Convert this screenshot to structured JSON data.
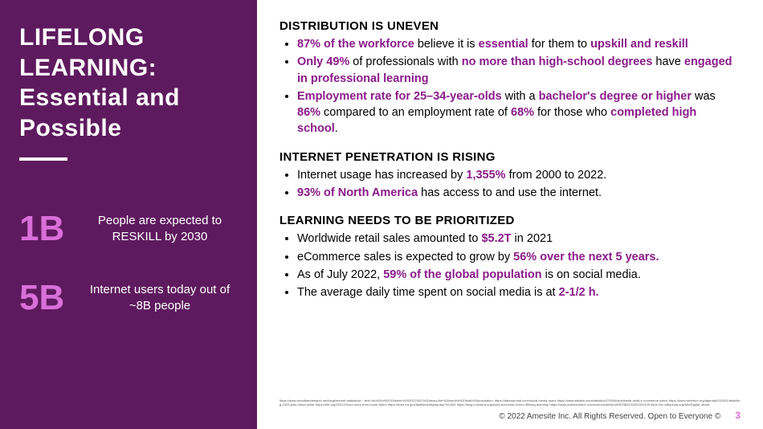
{
  "colors": {
    "sidebar_bg": "#5e1a5e",
    "accent_pink": "#d96fd9",
    "accent_purple": "#8a1b8a",
    "white": "#ffffff",
    "black": "#000000"
  },
  "sidebar": {
    "title_line1": "LIFELONG",
    "title_line2": "LEARNING:",
    "title_line3": "Essential and",
    "title_line4": "Possible",
    "stats": [
      {
        "num": "1B",
        "txt": "People are expected to RESKILL by 2030"
      },
      {
        "num": "5B",
        "txt": "Internet users today out of ~8B people"
      }
    ]
  },
  "sections": [
    {
      "head": "DISTRIBUTION IS UNEVEN",
      "bullets": [
        "<span class=\"accent\">87% of the workforce</span> believe it is <span class=\"accent\">essential</span> for them to <span class=\"accent\">upskill and reskill</span>",
        "<span class=\"accent\">Only 49%</span> of professionals with <span class=\"accent\">no more than high-school degrees</span> have <span class=\"accent\">engaged in professional learning</span>",
        "<span class=\"accent\">Employment rate for 25–34-year-olds</span> with a <span class=\"accent\">bachelor's degree or higher</span> was <span class=\"accent\">86%</span> compared to an employment rate of <span class=\"accent\">68%</span> for those who <span class=\"accent\">completed high school</span>."
      ]
    },
    {
      "head": "INTERNET PENETRATION IS RISING",
      "bullets": [
        "Internet usage has increased by <span class=\"accent\">1,355%</span> from 2000 to 2022.",
        "<span class=\"accent\">93% of North America</span> has access to and use the internet."
      ]
    },
    {
      "head": "LEARNING NEEDS TO BE PRIORITIZED",
      "bullets": [
        "Worldwide retail sales amounted to <span class=\"accent\">$5.2T</span> in 2021",
        "eCommerce sales is expected to grow by <span class=\"accent\">56% over the next 5 years.</span>",
        "As of July 2022, <span class=\"accent\">59% of the global population</span> is on social media.",
        "The average daily time spent on social media is at <span class=\"accent\">2-1/2 h.</span>"
      ]
    }
  ],
  "footnotes": "https://www.broadbandsearch.net/blog/internet-statistics#:~:text=As%20of%20October%202022%2C%20about,the%20world's%20total%20population. https://datareportal.com/social-media-users https://www.statista.com/statistics/379046/worldwide-retail-e-commerce-sales/ https://www.weforum.org/agenda/2020/01/reskilling-2025-jobs-future-skills/ https://hbr.org/2021/10/our-work-from-home-future https://nces.ed.gov/fastfacts/display.asp?id=561 https://blog.coursera.org/world-economic-forum-lifelong-learning/ https://www.sciencedirect.com/science/article/pii/S0360131520301445 https://en.wikipedia.org/wiki/Digital_divide",
  "footer": {
    "copyright": "© 2022 Amesite Inc. All Rights Reserved. Open to Everyone ©",
    "page": "3"
  }
}
